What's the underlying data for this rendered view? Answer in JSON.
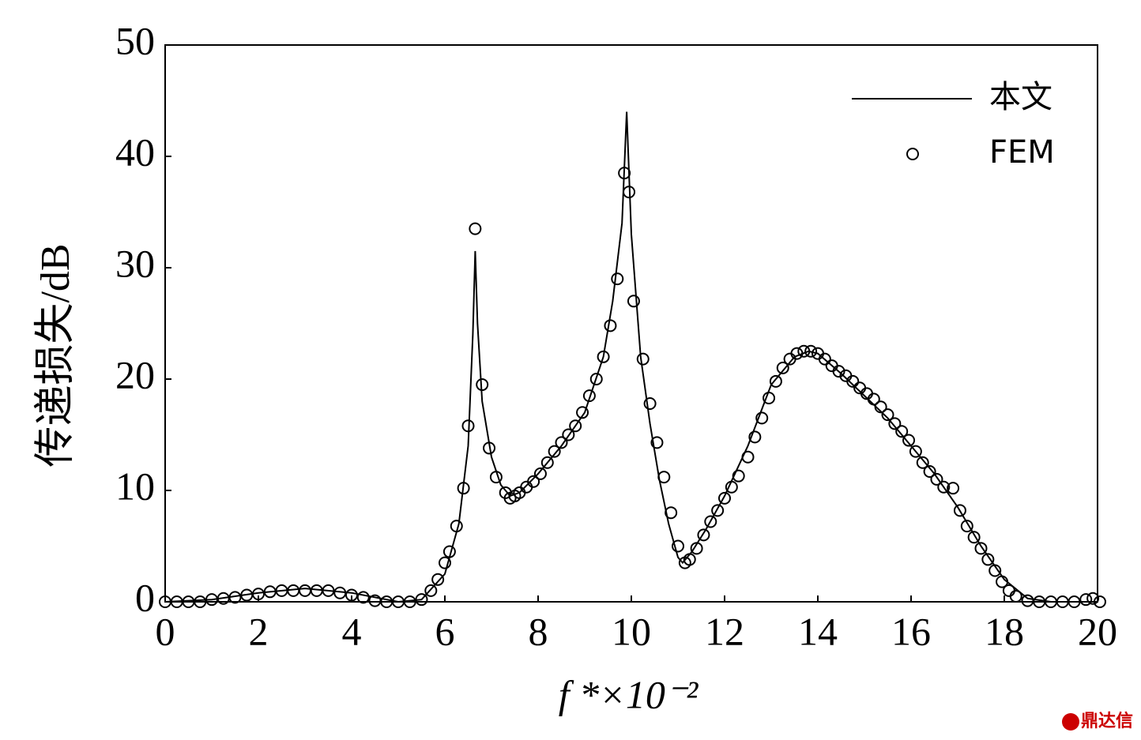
{
  "chart_data": {
    "type": "line",
    "y_label": "传递损失/dB",
    "x_label": "f *×10⁻²",
    "xlim": [
      0,
      20
    ],
    "xticks": [
      0,
      2,
      4,
      6,
      8,
      10,
      12,
      14,
      16,
      18,
      20
    ],
    "ylim": [
      0,
      50
    ],
    "yticks": [
      0,
      10,
      20,
      30,
      40,
      50
    ],
    "legend": "upper right",
    "watermark": "鼎达信",
    "series": [
      {
        "name": "本文",
        "style": "line",
        "color": "#000000",
        "x": [
          0,
          1,
          2,
          3,
          4,
          5,
          5.5,
          6,
          6.3,
          6.5,
          6.6,
          6.65,
          6.7,
          6.8,
          7,
          7.2,
          7.4,
          7.6,
          8,
          8.5,
          9,
          9.4,
          9.6,
          9.8,
          9.9,
          10,
          10.2,
          10.4,
          10.6,
          10.8,
          11,
          11.1,
          11.3,
          11.6,
          12,
          12.5,
          13,
          13.5,
          13.8,
          14,
          14.5,
          15,
          15.5,
          16,
          16.5,
          17,
          17.5,
          18,
          18.5,
          19,
          20
        ],
        "values": [
          0,
          0.2,
          0.8,
          1.2,
          0.8,
          0,
          0.2,
          2.5,
          7,
          14,
          24,
          31.5,
          25,
          18,
          13,
          10.5,
          9.5,
          9.8,
          11.5,
          14,
          17,
          22,
          27,
          34,
          44,
          33,
          22,
          16,
          11,
          7,
          4,
          3.5,
          4.5,
          6.5,
          9.5,
          14,
          19.5,
          22,
          22.5,
          22.3,
          20.5,
          18.5,
          16.5,
          14,
          11.5,
          8.5,
          5,
          2,
          0.3,
          0,
          0
        ]
      },
      {
        "name": "FEM",
        "style": "marker",
        "color": "#000000",
        "x": [
          0,
          0.25,
          0.5,
          0.75,
          1,
          1.25,
          1.5,
          1.75,
          2,
          2.25,
          2.5,
          2.75,
          3,
          3.25,
          3.5,
          3.75,
          4,
          4.25,
          4.5,
          4.75,
          5,
          5.25,
          5.5,
          5.7,
          5.85,
          6,
          6.1,
          6.25,
          6.4,
          6.5,
          6.65,
          6.8,
          6.95,
          7.1,
          7.3,
          7.4,
          7.5,
          7.6,
          7.75,
          7.9,
          8.05,
          8.2,
          8.35,
          8.5,
          8.65,
          8.8,
          8.95,
          9.1,
          9.25,
          9.4,
          9.55,
          9.7,
          9.85,
          9.95,
          10.05,
          10.25,
          10.4,
          10.55,
          10.7,
          10.85,
          11,
          11.15,
          11.25,
          11.4,
          11.55,
          11.7,
          11.85,
          12,
          12.15,
          12.3,
          12.5,
          12.65,
          12.8,
          12.95,
          13.1,
          13.25,
          13.4,
          13.55,
          13.7,
          13.85,
          14,
          14.15,
          14.3,
          14.45,
          14.6,
          14.75,
          14.9,
          15.05,
          15.2,
          15.35,
          15.5,
          15.65,
          15.8,
          15.95,
          16.1,
          16.25,
          16.4,
          16.55,
          16.7,
          16.9,
          17.05,
          17.2,
          17.35,
          17.5,
          17.65,
          17.8,
          17.95,
          18.1,
          18.25,
          18.5,
          18.75,
          19,
          19.25,
          19.5,
          19.75,
          19.9,
          20.05
        ],
        "values": [
          0,
          0,
          0,
          0,
          0.2,
          0.3,
          0.4,
          0.6,
          0.7,
          0.9,
          1,
          1,
          1,
          1,
          1,
          0.8,
          0.6,
          0.4,
          0.1,
          0,
          0,
          0,
          0.2,
          1,
          2,
          3.5,
          4.5,
          6.8,
          10.2,
          15.8,
          33.5,
          19.5,
          13.8,
          11.2,
          9.8,
          9.3,
          9.5,
          9.8,
          10.3,
          10.8,
          11.5,
          12.5,
          13.5,
          14.3,
          15,
          15.8,
          17,
          18.5,
          20,
          22,
          24.8,
          29,
          38.5,
          36.8,
          27,
          21.8,
          17.8,
          14.3,
          11.2,
          8,
          5,
          3.5,
          3.8,
          4.8,
          6,
          7.2,
          8.2,
          9.3,
          10.3,
          11.3,
          13,
          14.8,
          16.5,
          18.3,
          19.8,
          21,
          21.8,
          22.3,
          22.5,
          22.5,
          22.3,
          21.8,
          21.2,
          20.7,
          20.3,
          19.8,
          19.2,
          18.7,
          18.2,
          17.5,
          16.8,
          16,
          15.3,
          14.5,
          13.5,
          12.5,
          11.7,
          11,
          10.3,
          10.2,
          8.2,
          6.8,
          5.8,
          4.8,
          3.8,
          2.8,
          1.8,
          1,
          0.5,
          0.1,
          0,
          0,
          0,
          0,
          0.2,
          0.3,
          0
        ]
      }
    ]
  }
}
